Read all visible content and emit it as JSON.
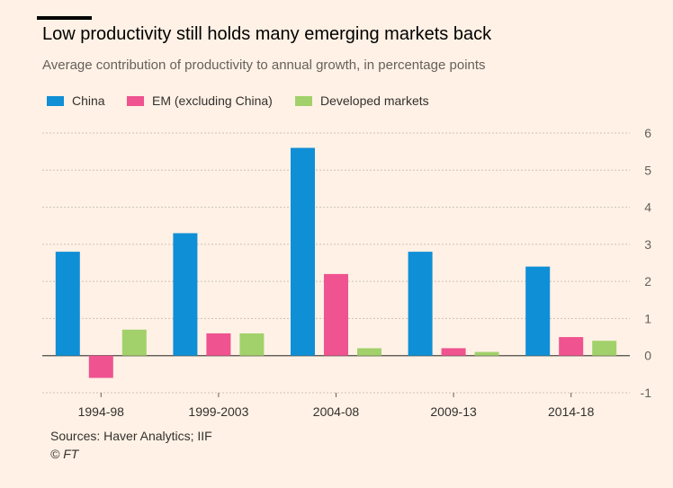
{
  "header": {
    "title": "Low productivity still holds many emerging markets back",
    "subtitle": "Average contribution of productivity to annual growth, in percentage points"
  },
  "chart_data": {
    "type": "bar",
    "title": "Low productivity still holds many emerging markets back",
    "subtitle": "Average contribution of productivity to annual growth, in percentage points",
    "categories": [
      "1994-98",
      "1999-2003",
      "2004-08",
      "2009-13",
      "2014-18"
    ],
    "series": [
      {
        "name": "China",
        "color": "#0f8fd6",
        "values": [
          2.8,
          3.3,
          5.6,
          2.8,
          2.4
        ]
      },
      {
        "name": "EM (excluding China)",
        "color": "#ef5390",
        "values": [
          -0.6,
          0.6,
          2.2,
          0.2,
          0.5
        ]
      },
      {
        "name": "Developed markets",
        "color": "#a2d16b",
        "values": [
          0.7,
          0.6,
          0.2,
          0.1,
          0.4
        ]
      }
    ],
    "ylim": [
      -1,
      6
    ],
    "yticks": [
      "6",
      "5",
      "4",
      "3",
      "2",
      "1",
      "0",
      "-1"
    ],
    "ytick_values": [
      6,
      5,
      4,
      3,
      2,
      1,
      0,
      -1
    ],
    "xlabel": "",
    "ylabel": "",
    "legend_position": "top-left",
    "grid": true
  },
  "footer": {
    "source": "Sources: Haver Analytics; IIF",
    "credit": "© FT"
  }
}
